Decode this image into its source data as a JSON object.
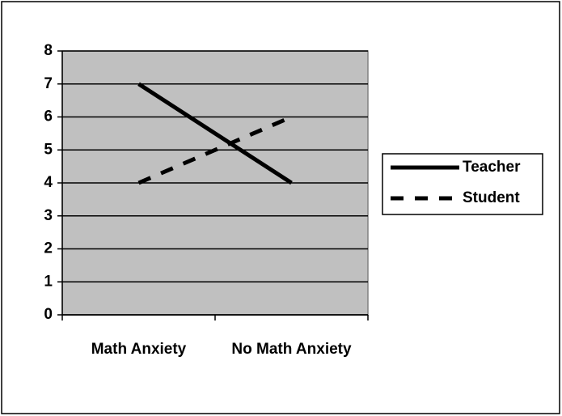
{
  "chart_data": {
    "type": "line",
    "categories": [
      "Math Anxiety",
      "No Math Anxiety"
    ],
    "series": [
      {
        "name": "Teacher",
        "color": "#000000",
        "dash": "solid",
        "values": [
          7,
          4
        ]
      },
      {
        "name": "Student",
        "color": "#000000",
        "dash": "dashed",
        "values": [
          4,
          6
        ]
      }
    ],
    "ylim": [
      0,
      8
    ],
    "yticks": [
      0,
      1,
      2,
      3,
      4,
      5,
      6,
      7,
      8
    ],
    "grid": true,
    "plot_background": "#c0c0c0",
    "legend": "right"
  }
}
